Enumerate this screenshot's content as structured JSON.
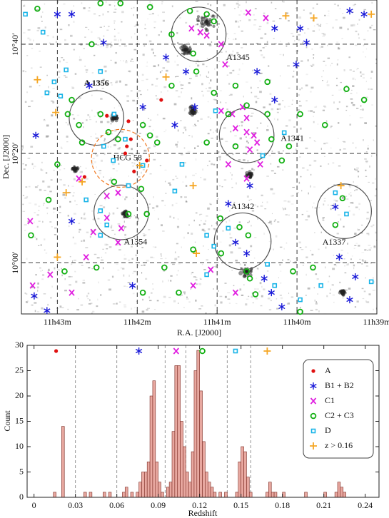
{
  "chart_data": [
    {
      "type": "scatter",
      "x_label": "R.A. [J2000]",
      "y_label": "Dec. [J2000]",
      "xlim": [
        43.45,
        39.0
      ],
      "ylim": [
        -9.4,
        48.1
      ],
      "xticks": [
        {
          "value": 43,
          "label": "11h43m"
        },
        {
          "value": 42,
          "label": "11h42m"
        },
        {
          "value": 41,
          "label": "11h41m"
        },
        {
          "value": 40,
          "label": "11h40m"
        },
        {
          "value": 39,
          "label": "11h39m"
        }
      ],
      "yticks": [
        {
          "value": 0,
          "label": "10°00′"
        },
        {
          "value": 20,
          "label": "10°20′"
        },
        {
          "value": 40,
          "label": "10°40′"
        }
      ],
      "grid": true,
      "series": [
        {
          "name": "A",
          "color": "#e01010",
          "marker": "dot",
          "x": [
            41.7,
            42.11,
            42.08,
            42.13,
            42.15,
            41.88,
            42.04,
            42.66,
            42.38
          ],
          "y": [
            29.8,
            25.9,
            22.6,
            21.3,
            20.0,
            18.7,
            16.7,
            15.7,
            26.9
          ]
        },
        {
          "name": "B1 + B2",
          "color": "#1a1ad8",
          "marker": "asterisk",
          "x": [
            43,
            42.82,
            42.42,
            43.27,
            42.6,
            41.93,
            41.39,
            41.64,
            42.82,
            42.06,
            43.13,
            43.29,
            40.5,
            40.28,
            39.96,
            39.88,
            40.01,
            39.34,
            39.16,
            40.28,
            40.59,
            40.86,
            40.63,
            40.77,
            40.41,
            40.32,
            40.19,
            39.47,
            39.27,
            39.34,
            39.52,
            41.53,
            41.28
          ],
          "y": [
            45.5,
            45.5,
            40.3,
            23.3,
            32.4,
            28.5,
            35.0,
            37.6,
            7.6,
            -4.2,
            -8.8,
            -6.1,
            35.0,
            42.9,
            42.9,
            40.3,
            36.3,
            46.1,
            45.5,
            29.8,
            14.1,
            10.8,
            1.7,
            3.7,
            -2.9,
            -5.5,
            -8.1,
            1.0,
            -2.6,
            -6.8,
            10.2,
            25.2,
            28.5
          ]
        },
        {
          "name": "C1",
          "color": "#e020e0",
          "marker": "x",
          "x": [
            41.32,
            41.21,
            41.13,
            40.61,
            40.39,
            40.95,
            40.81,
            40.68,
            40.63,
            40.77,
            40.63,
            40.54,
            40.5,
            40.59,
            40.86,
            40.63,
            40.46,
            42.38,
            42.24,
            42.38,
            42.2,
            42.55,
            42.24,
            43.34,
            43.31,
            43.09,
            42.82,
            42.64,
            41.08,
            41.3,
            40.77,
            42.73,
            40.95,
            40.9
          ],
          "y": [
            42.9,
            42.2,
            41.6,
            45.8,
            44.8,
            27.8,
            27.2,
            28.5,
            26.5,
            24.6,
            23.9,
            23.3,
            22.0,
            20.7,
            18.0,
            15.4,
            18.0,
            12.2,
            12.8,
            8.2,
            6.3,
            5.6,
            3.7,
            7.6,
            -4.2,
            -2.2,
            -5.5,
            1.0,
            -1.3,
            -4.2,
            -5.5,
            15.4,
            40.0,
            36.3
          ]
        },
        {
          "name": "C2 + C3",
          "color": "#12b012",
          "marker": "circle",
          "x": [
            42.46,
            42.21,
            41.84,
            41.34,
            41.13,
            41.04,
            41.57,
            42.57,
            43.25,
            41.3,
            41.26,
            41.57,
            42.82,
            42.87,
            42.46,
            42.36,
            42.24,
            42.69,
            42.73,
            41.93,
            41.84,
            41.75,
            41.95,
            42.11,
            41.88,
            42.29,
            43,
            43.11,
            43.33,
            42.91,
            42.51,
            41.66,
            41.48,
            41.3,
            40.86,
            40.77,
            40.37,
            40.32,
            40.19,
            40.1,
            40.63,
            41.13,
            39.38,
            39.16,
            39.96,
            39.65,
            40.96,
            40.72,
            40.61,
            40.95,
            40.59,
            40.63,
            40.52,
            40.05,
            39.8,
            39.43,
            39.52,
            40.37,
            40.77,
            41.04,
            41.93,
            39.96
          ],
          "y": [
            47.5,
            47.5,
            46.8,
            46.1,
            45.5,
            44.2,
            41.8,
            40.0,
            46.5,
            38.3,
            35.0,
            32.4,
            29.8,
            27.2,
            27.2,
            23.9,
            22.6,
            22.0,
            25.2,
            25.2,
            23.3,
            22.0,
            13.5,
            8.9,
            8.9,
            14.8,
            18.0,
            11.5,
            5.0,
            -1.6,
            -0.9,
            -0.9,
            -5.5,
            2.4,
            27.2,
            21.3,
            27.2,
            22.6,
            18.7,
            21.3,
            28.8,
            22.0,
            31.8,
            29.8,
            27.2,
            25.2,
            8.1,
            6.5,
            5.0,
            1.7,
            -2.9,
            -1.6,
            -5.8,
            -1.6,
            -0.9,
            11.8,
            6.9,
            33.1,
            32.4,
            31.1,
            -5.5,
            -9.0
          ]
        },
        {
          "name": "D",
          "color": "#18b4e8",
          "marker": "square",
          "x": [
            43.4,
            43.18,
            42.46,
            42.89,
            43.04,
            43.13,
            42.96,
            42.29,
            42.42,
            42.3,
            42.15,
            42.11,
            42.64,
            42.46,
            42.38,
            42.46,
            41.53,
            41.13,
            41.04,
            41.13,
            40.37,
            40.28,
            39.96,
            39.07,
            39.7,
            39.52,
            39.38,
            40.16,
            41.02,
            40.86,
            40.43,
            41.44,
            41.93
          ],
          "y": [
            45.5,
            42.2,
            35.0,
            35.3,
            33.1,
            31.1,
            30.5,
            27.2,
            21.3,
            18.7,
            22.6,
            14.1,
            11.5,
            9.5,
            6.9,
            5.0,
            13.1,
            5.0,
            3.0,
            -2.2,
            -0.3,
            -4.2,
            -6.8,
            -3.5,
            -4.2,
            12.8,
            8.9,
            23.8,
            27.8,
            6.3,
            19.6,
            18.0,
            17.8
          ]
        },
        {
          "name": "z > 0.16",
          "color": "#f5a623",
          "marker": "plus",
          "x": [
            43.25,
            43.02,
            41.64,
            41.97,
            42.69,
            42.89,
            41.3,
            41.26,
            43,
            40.14,
            39.07,
            39.45,
            39.79
          ],
          "y": [
            33.5,
            27.5,
            34.0,
            17.8,
            14.8,
            12.8,
            14.1,
            1.7,
            1.0,
            45.2,
            45.5,
            14.1,
            44.8
          ]
        }
      ],
      "clusters": [
        {
          "name": "A1345",
          "x": 41.23,
          "y": 41.8,
          "r": 5.0,
          "color": "#505050"
        },
        {
          "name": "A 1356",
          "x": 42.51,
          "y": 26.5,
          "r": 5.0,
          "color": "#505050",
          "bold": true
        },
        {
          "name": "A1341",
          "x": 40.63,
          "y": 23.3,
          "r": 5.0,
          "color": "#505050"
        },
        {
          "name": "HCG 58",
          "x": 42.21,
          "y": 19.1,
          "r": 5.3,
          "color": "#f07820",
          "dashed": true
        },
        {
          "name": "A1354",
          "x": 42.2,
          "y": 9.2,
          "r": 5.0,
          "color": "#505050"
        },
        {
          "name": "A1342",
          "x": 40.68,
          "y": 3.9,
          "r": 5.2,
          "color": "#505050"
        },
        {
          "name": "A1337",
          "x": 39.41,
          "y": 9.4,
          "r": 5.0,
          "color": "#505050"
        }
      ]
    },
    {
      "type": "histogram",
      "x_label": "Redshift",
      "y_label": "Count",
      "xlim": [
        -0.005,
        0.25
      ],
      "ylim": [
        0,
        30
      ],
      "xticks": [
        0,
        0.03,
        0.06,
        0.09,
        0.12,
        0.15,
        0.18,
        0.21,
        0.24
      ],
      "yticks": [
        0,
        5,
        10,
        15,
        20,
        25,
        30
      ],
      "color": "#e8a8a0",
      "separators": [
        0.03,
        0.06,
        0.095,
        0.11,
        0.14,
        0.157
      ],
      "group_marker_x": [
        0.016,
        0.076,
        0.103,
        0.122,
        0.146,
        0.169
      ],
      "bins": [
        0.012,
        0.014,
        0.016,
        0.018,
        0.02,
        0.022,
        0.024,
        0.026,
        0.028,
        0.03,
        0.032,
        0.034,
        0.036,
        0.038,
        0.04,
        0.042,
        0.044,
        0.046,
        0.048,
        0.05,
        0.052,
        0.054,
        0.056,
        0.058,
        0.06,
        0.062,
        0.064,
        0.066,
        0.068,
        0.07,
        0.072,
        0.074,
        0.076,
        0.078,
        0.08,
        0.082,
        0.084,
        0.086,
        0.088,
        0.09,
        0.092,
        0.094,
        0.096,
        0.098,
        0.1,
        0.102,
        0.104,
        0.106,
        0.108,
        0.11,
        0.112,
        0.114,
        0.116,
        0.118,
        0.12,
        0.122,
        0.124,
        0.126,
        0.128,
        0.13,
        0.132,
        0.134,
        0.136,
        0.138,
        0.14,
        0.142,
        0.144,
        0.146,
        0.148,
        0.15,
        0.152,
        0.154,
        0.156,
        0.158,
        0.16,
        0.162,
        0.164,
        0.166,
        0.168,
        0.17,
        0.172,
        0.174,
        0.176,
        0.178,
        0.18,
        0.182,
        0.184,
        0.186,
        0.188,
        0.19,
        0.192,
        0.194,
        0.196,
        0.198,
        0.2,
        0.202,
        0.204,
        0.206,
        0.208,
        0.21,
        0.212,
        0.214,
        0.216,
        0.218,
        0.22,
        0.222,
        0.224,
        0.226
      ],
      "values": [
        0,
        1,
        0,
        0,
        14,
        0,
        0,
        0,
        0,
        0,
        0,
        0,
        1,
        0,
        1,
        0,
        0,
        0,
        0,
        1,
        0,
        1,
        0,
        0,
        0,
        0,
        1,
        2,
        0,
        1,
        0,
        1,
        3,
        5,
        5,
        7,
        20,
        23,
        7,
        3,
        1,
        0,
        2,
        3,
        13,
        26,
        26,
        15,
        10,
        5,
        3,
        9,
        25,
        29,
        21,
        11,
        5,
        3,
        2,
        1,
        0,
        1,
        0,
        1,
        0,
        0,
        0,
        1,
        7,
        10,
        9,
        4,
        1,
        0,
        0,
        0,
        0,
        0,
        1,
        3,
        1,
        1,
        0,
        0,
        1,
        0,
        0,
        0,
        0,
        0,
        0,
        0,
        1,
        0,
        0,
        0,
        0,
        0,
        0,
        1,
        0,
        0,
        0,
        1,
        3,
        2,
        1
      ],
      "legend": "upper right"
    }
  ]
}
